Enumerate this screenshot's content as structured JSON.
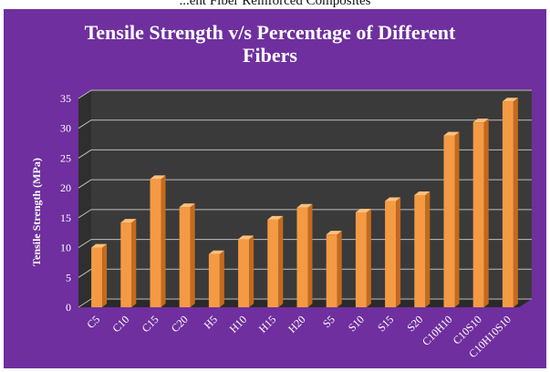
{
  "page": {
    "top_caption": "...ent Fiber Reinforced Composites"
  },
  "colors": {
    "background": "#6f2f9f",
    "plot_back": "#3a3a3a",
    "plot_floor": "#2a2a2a",
    "bar_front": "#f59a44",
    "bar_side": "#c46a1e",
    "bar_top": "#ffc07a",
    "grid": "#bdbdbd",
    "text": "#ffffff"
  },
  "chart_data": {
    "type": "bar",
    "title": "Tensile Strength v/s Percentage of Different Fibers",
    "xlabel": "",
    "ylabel": "Tensile Strength (MPa)",
    "ylim": [
      0,
      35
    ],
    "yticks": [
      0,
      5,
      10,
      15,
      20,
      25,
      30,
      35
    ],
    "grid": true,
    "legend": "none",
    "categories": [
      "C5",
      "C10",
      "C15",
      "C20",
      "H5",
      "H10",
      "H15",
      "H20",
      "S5",
      "S10",
      "S15",
      "S20",
      "C10H10",
      "C10S10",
      "C10H10S10"
    ],
    "values": [
      10,
      14.2,
      21.5,
      16.8,
      8.9,
      11.4,
      14.7,
      16.7,
      12.2,
      15.9,
      17.8,
      18.8,
      28.8,
      31,
      34.5
    ]
  }
}
